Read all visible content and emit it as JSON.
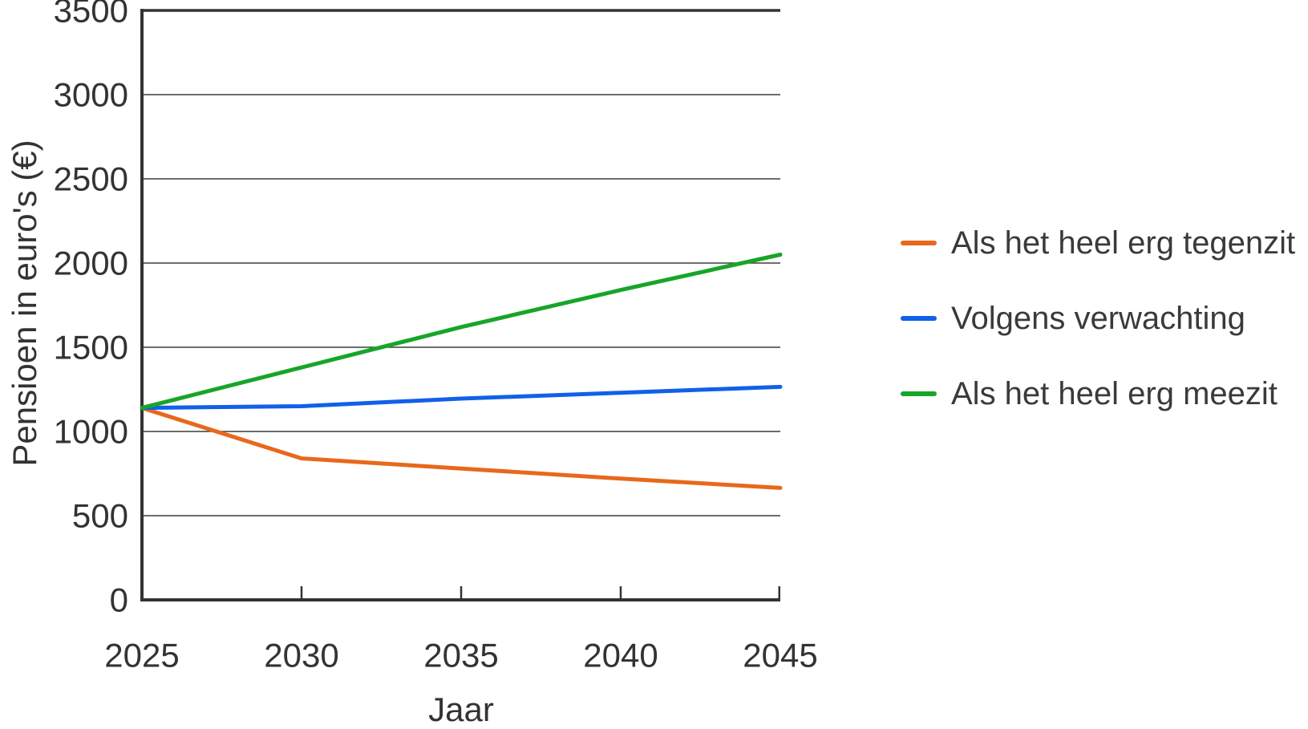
{
  "chart_data": {
    "type": "line",
    "title": "",
    "xlabel": "Jaar",
    "ylabel": "Pensioen in euro's (€)",
    "x": [
      2025,
      2030,
      2035,
      2040,
      2045
    ],
    "x_ticklabels": [
      "2025",
      "2030",
      "2035",
      "2040",
      "2045"
    ],
    "y_ticklabels": [
      "0",
      "500",
      "1000",
      "1500",
      "2000",
      "2500",
      "3000",
      "3500"
    ],
    "xlim": [
      2025,
      2045
    ],
    "ylim": [
      0,
      3500
    ],
    "ytick_step": 500,
    "grid": true,
    "legend_position": "right",
    "series": [
      {
        "name": "Als het heel erg tegenzit",
        "color": "#E8681C",
        "values": [
          1140,
          840,
          780,
          720,
          665
        ]
      },
      {
        "name": "Volgens verwachting",
        "color": "#1160E8",
        "values": [
          1140,
          1150,
          1195,
          1230,
          1265
        ]
      },
      {
        "name": "Als het heel erg meezit",
        "color": "#17A529",
        "values": [
          1140,
          1380,
          1620,
          1840,
          2050
        ]
      }
    ]
  },
  "colors": {
    "axis": "#333333",
    "grid": "#3d3d3d",
    "tick_label": "#333333",
    "background": "#ffffff"
  }
}
